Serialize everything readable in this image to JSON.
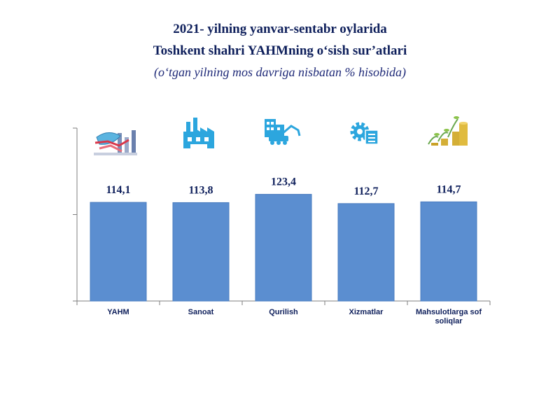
{
  "title": {
    "line1": "2021- yilning yanvar-sentabr oylarida",
    "line2": "Toshkent shahri YAHMning o‘sish sur’atlari",
    "line3": "(o‘tgan yilning mos davriga nisbatan % hisobida)"
  },
  "colors": {
    "bar": "#5b8ed0",
    "bar_stroke": "#4a7cbf",
    "axis": "#7f7f7f",
    "text": "#0e1f5b"
  },
  "chart_data": {
    "type": "bar",
    "categories": [
      "YAHM",
      "Sanoat",
      "Qurilish",
      "Xizmatlar",
      "Mahsulotlarga sof soliqlar"
    ],
    "category_lines": [
      [
        "YAHM"
      ],
      [
        "Sanoat"
      ],
      [
        "Qurilish"
      ],
      [
        "Xizmatlar"
      ],
      [
        "Mahsulotlarga sof",
        "soliqlar"
      ]
    ],
    "values": [
      114.1,
      113.8,
      123.4,
      112.7,
      114.7
    ],
    "value_labels": [
      "114,1",
      "113,8",
      "123,4",
      "112,7",
      "114,7"
    ],
    "icons": [
      "economy-chart-icon",
      "factory-icon",
      "construction-icon",
      "services-gear-icon",
      "money-growth-icon"
    ],
    "ylim": [
      0,
      200
    ],
    "grid": false,
    "legend": "none"
  }
}
